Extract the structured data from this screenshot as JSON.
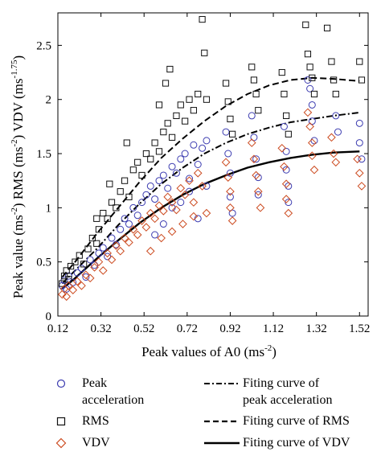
{
  "chart_data": {
    "type": "scatter",
    "xlabel": "Peak values of A0 (ms",
    "xlabel_sup": "-2",
    "xlabel_end": ")",
    "ylabel_parts": [
      {
        "t": "Peak value (ms"
      },
      {
        "t": "-2",
        "sup": true
      },
      {
        "t": ") RMS (ms"
      },
      {
        "t": "-2",
        "sup": true
      },
      {
        "t": ") VDV (ms"
      },
      {
        "t": "-1.75",
        "sup": true
      },
      {
        "t": ")"
      }
    ],
    "xlim": [
      0.12,
      1.56
    ],
    "ylim": [
      0,
      2.8
    ],
    "xticks": [
      0.12,
      0.32,
      0.52,
      0.72,
      0.92,
      1.12,
      1.32,
      1.52
    ],
    "xtick_labels": [
      "0.12",
      "0.32",
      "0.52",
      "0.72",
      "0.92",
      "1.12",
      "1.32",
      "1.52"
    ],
    "yticks": [
      0,
      0.5,
      1,
      1.5,
      2,
      2.5
    ],
    "ytick_labels": [
      "0",
      "0.5",
      "1",
      "1.5",
      "2",
      "2.5"
    ],
    "grid": false,
    "legend_position": "bottom",
    "series": [
      {
        "name": "Peak acceleration",
        "marker": "circle",
        "color": "#3b3bb0",
        "points": [
          [
            0.14,
            0.28
          ],
          [
            0.15,
            0.33
          ],
          [
            0.16,
            0.25
          ],
          [
            0.17,
            0.37
          ],
          [
            0.19,
            0.31
          ],
          [
            0.21,
            0.4
          ],
          [
            0.23,
            0.44
          ],
          [
            0.25,
            0.36
          ],
          [
            0.27,
            0.52
          ],
          [
            0.29,
            0.47
          ],
          [
            0.31,
            0.58
          ],
          [
            0.33,
            0.63
          ],
          [
            0.35,
            0.55
          ],
          [
            0.37,
            0.72
          ],
          [
            0.39,
            0.66
          ],
          [
            0.41,
            0.8
          ],
          [
            0.43,
            0.9
          ],
          [
            0.45,
            0.85
          ],
          [
            0.47,
            1.0
          ],
          [
            0.49,
            0.93
          ],
          [
            0.51,
            1.05
          ],
          [
            0.53,
            1.12
          ],
          [
            0.55,
            1.2
          ],
          [
            0.57,
            1.08
          ],
          [
            0.59,
            1.25
          ],
          [
            0.61,
            1.3
          ],
          [
            0.63,
            1.18
          ],
          [
            0.65,
            1.38
          ],
          [
            0.67,
            1.32
          ],
          [
            0.69,
            1.45
          ],
          [
            0.71,
            1.5
          ],
          [
            0.73,
            1.27
          ],
          [
            0.75,
            1.58
          ],
          [
            0.77,
            1.4
          ],
          [
            0.79,
            1.55
          ],
          [
            0.81,
            1.62
          ],
          [
            0.9,
            1.7
          ],
          [
            0.91,
            1.5
          ],
          [
            0.92,
            1.32
          ],
          [
            0.92,
            1.1
          ],
          [
            0.93,
            0.95
          ],
          [
            1.02,
            1.85
          ],
          [
            1.03,
            1.65
          ],
          [
            1.04,
            1.45
          ],
          [
            1.05,
            1.28
          ],
          [
            1.05,
            1.12
          ],
          [
            1.17,
            1.75
          ],
          [
            1.18,
            1.52
          ],
          [
            1.18,
            1.35
          ],
          [
            1.19,
            1.2
          ],
          [
            1.19,
            1.05
          ],
          [
            1.28,
            2.18
          ],
          [
            1.29,
            2.1
          ],
          [
            1.3,
            1.95
          ],
          [
            1.3,
            1.8
          ],
          [
            1.31,
            1.62
          ],
          [
            1.41,
            1.85
          ],
          [
            1.42,
            1.7
          ],
          [
            1.52,
            1.78
          ],
          [
            1.52,
            1.6
          ],
          [
            1.53,
            1.45
          ],
          [
            0.57,
            0.75
          ],
          [
            0.61,
            0.85
          ],
          [
            0.65,
            1.0
          ],
          [
            0.69,
            1.05
          ],
          [
            0.73,
            1.15
          ],
          [
            0.77,
            0.9
          ],
          [
            0.81,
            1.2
          ]
        ]
      },
      {
        "name": "RMS",
        "marker": "square",
        "color": "#111111",
        "points": [
          [
            0.14,
            0.3
          ],
          [
            0.15,
            0.37
          ],
          [
            0.16,
            0.42
          ],
          [
            0.17,
            0.34
          ],
          [
            0.18,
            0.46
          ],
          [
            0.2,
            0.5
          ],
          [
            0.22,
            0.56
          ],
          [
            0.24,
            0.48
          ],
          [
            0.26,
            0.62
          ],
          [
            0.28,
            0.72
          ],
          [
            0.3,
            0.67
          ],
          [
            0.31,
            0.8
          ],
          [
            0.33,
            0.95
          ],
          [
            0.35,
            0.9
          ],
          [
            0.37,
            1.05
          ],
          [
            0.39,
            1.0
          ],
          [
            0.41,
            1.15
          ],
          [
            0.43,
            1.25
          ],
          [
            0.45,
            1.1
          ],
          [
            0.47,
            1.35
          ],
          [
            0.49,
            1.42
          ],
          [
            0.51,
            1.3
          ],
          [
            0.53,
            1.5
          ],
          [
            0.55,
            1.45
          ],
          [
            0.57,
            1.6
          ],
          [
            0.59,
            1.52
          ],
          [
            0.61,
            1.7
          ],
          [
            0.63,
            1.78
          ],
          [
            0.65,
            1.65
          ],
          [
            0.67,
            1.85
          ],
          [
            0.69,
            1.95
          ],
          [
            0.71,
            1.8
          ],
          [
            0.73,
            2.0
          ],
          [
            0.75,
            1.9
          ],
          [
            0.77,
            2.05
          ],
          [
            0.79,
            2.74
          ],
          [
            0.8,
            2.43
          ],
          [
            0.81,
            2.0
          ],
          [
            0.9,
            2.15
          ],
          [
            0.91,
            1.98
          ],
          [
            0.92,
            1.82
          ],
          [
            0.93,
            1.68
          ],
          [
            1.02,
            2.3
          ],
          [
            1.03,
            2.18
          ],
          [
            1.04,
            2.05
          ],
          [
            1.05,
            1.9
          ],
          [
            1.16,
            2.25
          ],
          [
            1.17,
            2.05
          ],
          [
            1.18,
            1.85
          ],
          [
            1.19,
            1.68
          ],
          [
            1.27,
            2.69
          ],
          [
            1.28,
            2.42
          ],
          [
            1.29,
            2.3
          ],
          [
            1.3,
            2.2
          ],
          [
            1.31,
            2.05
          ],
          [
            1.37,
            2.66
          ],
          [
            1.39,
            2.35
          ],
          [
            1.4,
            2.18
          ],
          [
            1.41,
            2.05
          ],
          [
            1.52,
            2.35
          ],
          [
            1.53,
            2.18
          ],
          [
            0.64,
            2.28
          ],
          [
            0.62,
            2.15
          ],
          [
            0.59,
            1.95
          ],
          [
            0.44,
            1.6
          ],
          [
            0.36,
            1.22
          ],
          [
            0.3,
            0.9
          ]
        ]
      },
      {
        "name": "VDV",
        "marker": "diamond",
        "color": "#cc4a1f",
        "points": [
          [
            0.14,
            0.2
          ],
          [
            0.15,
            0.25
          ],
          [
            0.16,
            0.18
          ],
          [
            0.17,
            0.28
          ],
          [
            0.19,
            0.24
          ],
          [
            0.21,
            0.32
          ],
          [
            0.23,
            0.28
          ],
          [
            0.25,
            0.38
          ],
          [
            0.27,
            0.35
          ],
          [
            0.29,
            0.45
          ],
          [
            0.31,
            0.5
          ],
          [
            0.33,
            0.42
          ],
          [
            0.35,
            0.58
          ],
          [
            0.37,
            0.52
          ],
          [
            0.39,
            0.65
          ],
          [
            0.41,
            0.6
          ],
          [
            0.43,
            0.72
          ],
          [
            0.45,
            0.68
          ],
          [
            0.47,
            0.8
          ],
          [
            0.49,
            0.75
          ],
          [
            0.51,
            0.88
          ],
          [
            0.53,
            0.82
          ],
          [
            0.55,
            0.95
          ],
          [
            0.57,
            0.9
          ],
          [
            0.59,
            1.02
          ],
          [
            0.61,
            0.97
          ],
          [
            0.63,
            1.1
          ],
          [
            0.65,
            1.05
          ],
          [
            0.67,
            0.98
          ],
          [
            0.69,
            1.18
          ],
          [
            0.71,
            1.12
          ],
          [
            0.73,
            1.25
          ],
          [
            0.75,
            1.05
          ],
          [
            0.77,
            1.32
          ],
          [
            0.79,
            1.2
          ],
          [
            0.81,
            0.95
          ],
          [
            0.9,
            1.42
          ],
          [
            0.91,
            1.28
          ],
          [
            0.92,
            1.15
          ],
          [
            0.92,
            1.0
          ],
          [
            0.93,
            0.88
          ],
          [
            1.02,
            1.6
          ],
          [
            1.03,
            1.45
          ],
          [
            1.04,
            1.3
          ],
          [
            1.05,
            1.15
          ],
          [
            1.06,
            1.0
          ],
          [
            1.16,
            1.55
          ],
          [
            1.17,
            1.38
          ],
          [
            1.18,
            1.22
          ],
          [
            1.18,
            1.08
          ],
          [
            1.19,
            0.95
          ],
          [
            1.28,
            1.88
          ],
          [
            1.29,
            1.75
          ],
          [
            1.3,
            1.6
          ],
          [
            1.3,
            1.48
          ],
          [
            1.31,
            1.35
          ],
          [
            1.39,
            1.65
          ],
          [
            1.4,
            1.5
          ],
          [
            1.41,
            1.42
          ],
          [
            1.51,
            1.45
          ],
          [
            1.52,
            1.32
          ],
          [
            1.53,
            1.2
          ],
          [
            0.55,
            0.6
          ],
          [
            0.6,
            0.72
          ],
          [
            0.65,
            0.78
          ],
          [
            0.7,
            0.85
          ],
          [
            0.75,
            0.92
          ]
        ]
      }
    ],
    "fit_curves": [
      {
        "name": "Fiting curve of peak acceleration",
        "style": "dash-dot",
        "points": [
          [
            0.14,
            0.3
          ],
          [
            0.2,
            0.42
          ],
          [
            0.3,
            0.62
          ],
          [
            0.4,
            0.84
          ],
          [
            0.5,
            1.04
          ],
          [
            0.6,
            1.22
          ],
          [
            0.7,
            1.37
          ],
          [
            0.8,
            1.5
          ],
          [
            0.9,
            1.6
          ],
          [
            1.0,
            1.68
          ],
          [
            1.1,
            1.74
          ],
          [
            1.2,
            1.79
          ],
          [
            1.3,
            1.82
          ],
          [
            1.4,
            1.85
          ],
          [
            1.52,
            1.88
          ]
        ]
      },
      {
        "name": "Fiting curve of RMS",
        "style": "dash",
        "points": [
          [
            0.14,
            0.36
          ],
          [
            0.2,
            0.5
          ],
          [
            0.3,
            0.76
          ],
          [
            0.4,
            1.0
          ],
          [
            0.5,
            1.24
          ],
          [
            0.6,
            1.46
          ],
          [
            0.7,
            1.64
          ],
          [
            0.8,
            1.8
          ],
          [
            0.9,
            1.94
          ],
          [
            1.0,
            2.05
          ],
          [
            1.1,
            2.13
          ],
          [
            1.2,
            2.18
          ],
          [
            1.3,
            2.2
          ],
          [
            1.4,
            2.19
          ],
          [
            1.52,
            2.17
          ]
        ]
      },
      {
        "name": "Fiting curve of VDV",
        "style": "solid",
        "points": [
          [
            0.14,
            0.25
          ],
          [
            0.2,
            0.35
          ],
          [
            0.3,
            0.53
          ],
          [
            0.4,
            0.7
          ],
          [
            0.5,
            0.86
          ],
          [
            0.6,
            1.0
          ],
          [
            0.7,
            1.12
          ],
          [
            0.8,
            1.22
          ],
          [
            0.9,
            1.3
          ],
          [
            1.0,
            1.37
          ],
          [
            1.1,
            1.42
          ],
          [
            1.2,
            1.46
          ],
          [
            1.3,
            1.49
          ],
          [
            1.4,
            1.51
          ],
          [
            1.52,
            1.52
          ]
        ]
      }
    ]
  },
  "legend": {
    "peak": "Peak\nacceleration",
    "rms": "RMS",
    "vdv": "VDV",
    "fit_peak": "Fiting curve of\npeak acceleration",
    "fit_rms": "Fiting curve of RMS",
    "fit_vdv": "Fiting curve of VDV"
  }
}
